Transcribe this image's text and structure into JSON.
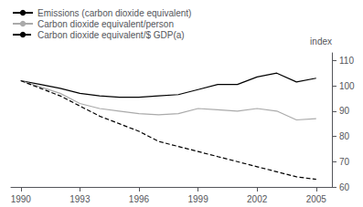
{
  "chart_data": {
    "type": "line",
    "ylabel": "index",
    "x": [
      1990,
      1991,
      1992,
      1993,
      1994,
      1995,
      1996,
      1997,
      1998,
      1999,
      2000,
      2001,
      2002,
      2003,
      2004,
      2005
    ],
    "series": [
      {
        "name": "Emissions (carbon dioxide equivalent)",
        "color": "#000000",
        "line_style": "solid",
        "values": [
          102,
          100.5,
          99,
          97,
          96,
          95.5,
          95.5,
          96,
          96.5,
          98.5,
          100.5,
          100.5,
          103.5,
          105,
          101.5,
          103
        ]
      },
      {
        "name": "Carbon dioxide equivalent/person",
        "color": "#aaaaaa",
        "line_style": "solid",
        "values": [
          102,
          99.5,
          97,
          93,
          91,
          90,
          89,
          88.5,
          89,
          91,
          90.5,
          90,
          91,
          90,
          86.5,
          87
        ]
      },
      {
        "name": "Carbon dioxide equivalent/$ GDP(a)",
        "color": "#000000",
        "line_style": "dashed",
        "values": [
          102,
          99,
          96,
          92,
          88,
          85,
          82,
          78,
          76,
          74,
          72,
          70,
          68,
          66,
          64,
          63
        ]
      }
    ],
    "xlim": [
      1989.5,
      2005.8
    ],
    "xticks": [
      1990,
      1993,
      1996,
      1999,
      2002,
      2005
    ],
    "ylim": [
      60,
      113
    ],
    "yticks": [
      60,
      70,
      80,
      90,
      100,
      110
    ],
    "grid": false,
    "legend": "upper left"
  }
}
